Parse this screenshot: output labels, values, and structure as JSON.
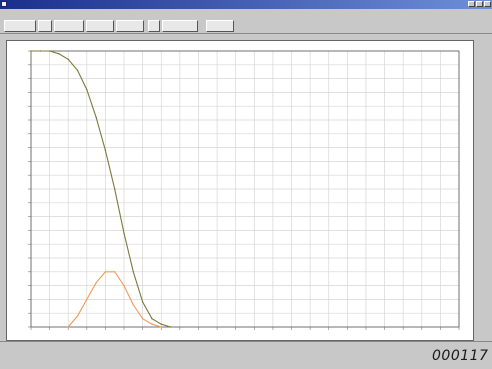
{
  "window": {
    "title": ""
  },
  "menu": {
    "items": [
      "",
      "",
      "",
      "",
      "",
      "",
      "",
      ""
    ]
  },
  "toolbar": {
    "buttons": [
      "",
      "",
      "",
      "",
      "",
      "",
      "",
      ""
    ]
  },
  "plot": {
    "caption": "",
    "legend": [
      "",
      "",
      "",
      "",
      "",
      ""
    ]
  },
  "status": {
    "line1": "",
    "line2": "",
    "line3": ""
  },
  "frame_counter": "000117",
  "colors": {
    "series_decline": "#7b7a3e",
    "series_peak": "#f29a57",
    "grid": "#d6d6d6",
    "titlebar": "#1a2f8c"
  },
  "chart_data": {
    "type": "line",
    "title": "",
    "xlabel": "",
    "ylabel": "",
    "xlim": [
      0,
      46
    ],
    "ylim": [
      0,
      100
    ],
    "grid": true,
    "series": [
      {
        "x": [
          0,
          1,
          2,
          3,
          4,
          5,
          6,
          7,
          8,
          9,
          10,
          11,
          12,
          13,
          14,
          15
        ],
        "y": [
          100,
          100,
          100,
          99,
          97,
          93,
          86,
          76,
          64,
          50,
          34,
          20,
          9,
          3,
          1,
          0
        ]
      },
      {
        "x": [
          4,
          5,
          6,
          7,
          8,
          9,
          10,
          11,
          12,
          13,
          14
        ],
        "y": [
          0,
          4,
          10,
          16,
          20,
          20,
          15,
          8,
          3,
          1,
          0
        ]
      }
    ]
  }
}
